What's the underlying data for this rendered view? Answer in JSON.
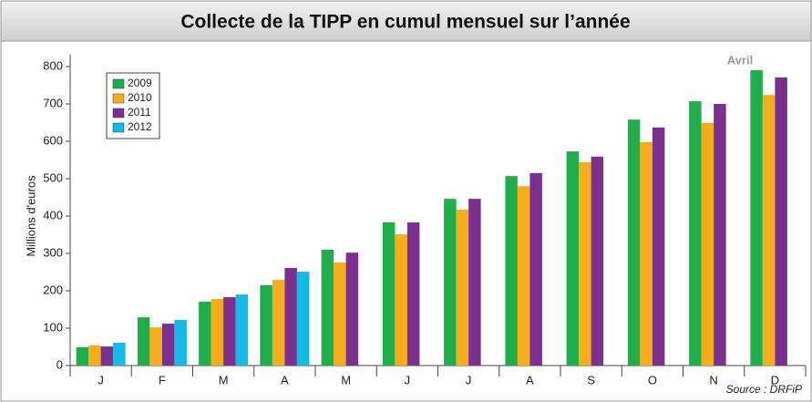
{
  "chart_data": {
    "type": "bar",
    "title": "Collecte de la TIPP en cumul mensuel sur l’année",
    "y_label": "Millions d'euros",
    "annotation": "Avril",
    "source": "Source : DRFiP",
    "categories": [
      "J",
      "F",
      "M",
      "A",
      "M",
      "J",
      "J",
      "A",
      "S",
      "O",
      "N",
      "D"
    ],
    "series": [
      {
        "name": "2009",
        "color": "#1fae4b",
        "values": [
          49,
          129,
          171,
          215,
          310,
          383,
          446,
          507,
          573,
          658,
          707,
          790
        ]
      },
      {
        "name": "2010",
        "color": "#f6ad1b",
        "values": [
          54,
          102,
          178,
          229,
          276,
          351,
          417,
          480,
          544,
          598,
          649,
          724
        ]
      },
      {
        "name": "2011",
        "color": "#7b2f8e",
        "values": [
          51,
          112,
          183,
          261,
          302,
          383,
          446,
          515,
          559,
          637,
          700,
          771
        ]
      },
      {
        "name": "2012",
        "color": "#14b9e8",
        "values": [
          61,
          122,
          190,
          251,
          null,
          null,
          null,
          null,
          null,
          null,
          null,
          null
        ]
      }
    ],
    "ylim": [
      0,
      800
    ],
    "yticks": [
      0,
      100,
      200,
      300,
      400,
      500,
      600,
      700,
      800
    ],
    "legend": "upper left"
  }
}
